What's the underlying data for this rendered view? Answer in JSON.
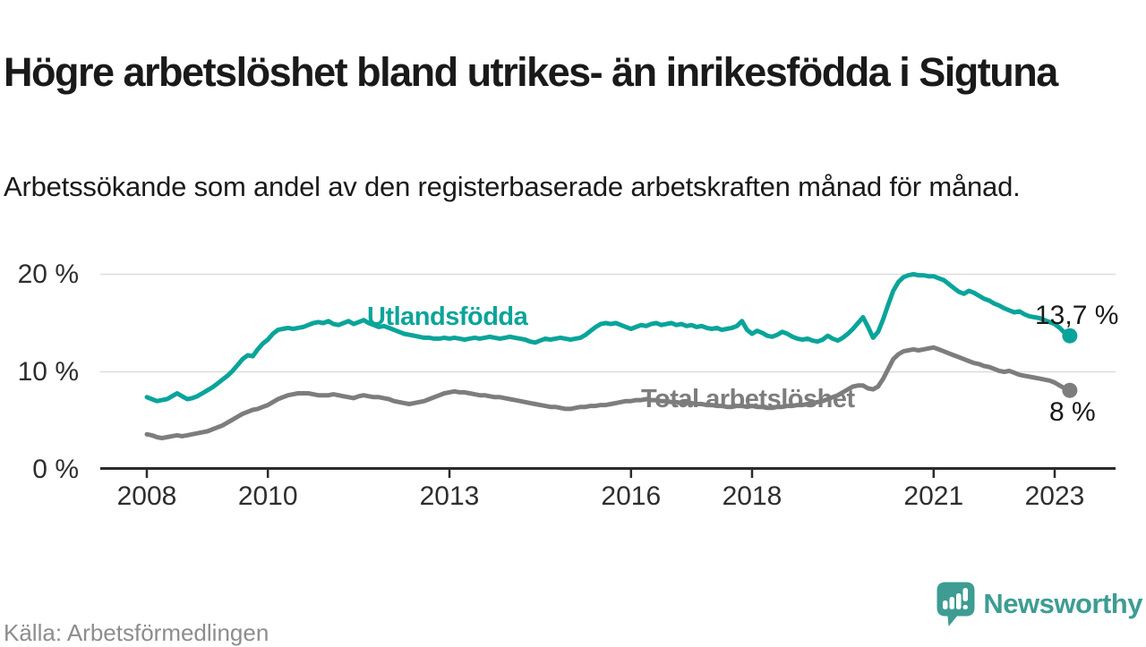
{
  "header": {
    "title": "Högre arbetslöshet bland utrikes- än inrikesfödda i Sigtuna",
    "subtitle": "Arbetssökande som andel av den registerbaserade arbetskraften månad för månad."
  },
  "footer": {
    "source": "Källa: Arbetsförmedlingen",
    "logo_text": "Newsworthy",
    "logo_color": "#3e9c93"
  },
  "colors": {
    "accent_teal": "#0aa49a",
    "series_gray": "#7d7d7d",
    "axis_text": "#2e2e2e",
    "gridline": "#dcdcdc",
    "axis_line": "#2b2b2b",
    "muted_text": "#8d8d8d"
  },
  "chart_data": {
    "type": "line",
    "title": "Högre arbetslöshet bland utrikes- än inrikesfödda i Sigtuna",
    "subtitle": "Arbetssökande som andel av den registerbaserade arbetskraften månad för månad.",
    "xlabel": "",
    "ylabel": "",
    "unit": "%",
    "x_start": "2008-01",
    "x_end": "2023-04",
    "x_step": "1 month",
    "ylim": [
      0,
      21
    ],
    "grid": true,
    "legend_position": "inline-labels",
    "x_ticks": [
      {
        "year": 2008,
        "label": "2008"
      },
      {
        "year": 2010,
        "label": "2010"
      },
      {
        "year": 2013,
        "label": "2013"
      },
      {
        "year": 2016,
        "label": "2016"
      },
      {
        "year": 2018,
        "label": "2018"
      },
      {
        "year": 2021,
        "label": "2021"
      },
      {
        "year": 2023,
        "label": "2023"
      }
    ],
    "y_ticks": [
      {
        "value": 0,
        "label": "0 %"
      },
      {
        "value": 10,
        "label": "10 %"
      },
      {
        "value": 20,
        "label": "20 %"
      }
    ],
    "series": [
      {
        "name": "Utlandsfödda",
        "color": "#0aa49a",
        "end_label": "13,7 %",
        "end_value": 13.7,
        "values": [
          7.4,
          7.2,
          7.0,
          7.1,
          7.2,
          7.5,
          7.8,
          7.5,
          7.2,
          7.3,
          7.5,
          7.8,
          8.1,
          8.4,
          8.8,
          9.2,
          9.6,
          10.1,
          10.7,
          11.3,
          11.7,
          11.6,
          12.3,
          12.9,
          13.3,
          13.9,
          14.3,
          14.4,
          14.5,
          14.4,
          14.5,
          14.6,
          14.8,
          15.0,
          15.1,
          15.0,
          15.2,
          14.9,
          14.8,
          15.0,
          15.2,
          14.9,
          15.1,
          15.3,
          15.0,
          14.8,
          14.6,
          14.7,
          14.5,
          14.3,
          14.1,
          13.9,
          13.8,
          13.7,
          13.6,
          13.5,
          13.5,
          13.4,
          13.4,
          13.5,
          13.4,
          13.5,
          13.4,
          13.3,
          13.4,
          13.5,
          13.4,
          13.5,
          13.6,
          13.5,
          13.4,
          13.5,
          13.6,
          13.5,
          13.4,
          13.3,
          13.1,
          13.0,
          13.2,
          13.4,
          13.3,
          13.4,
          13.5,
          13.4,
          13.3,
          13.4,
          13.5,
          13.8,
          14.2,
          14.6,
          14.9,
          15.0,
          14.9,
          15.0,
          14.8,
          14.6,
          14.4,
          14.6,
          14.8,
          14.7,
          14.9,
          15.0,
          14.8,
          14.9,
          15.0,
          14.8,
          14.9,
          14.7,
          14.8,
          14.6,
          14.7,
          14.5,
          14.4,
          14.5,
          14.3,
          14.4,
          14.5,
          14.7,
          15.2,
          14.3,
          13.9,
          14.2,
          14.0,
          13.7,
          13.6,
          13.8,
          14.1,
          13.9,
          13.6,
          13.4,
          13.3,
          13.4,
          13.2,
          13.1,
          13.3,
          13.7,
          13.4,
          13.2,
          13.5,
          13.9,
          14.4,
          15.0,
          15.6,
          14.6,
          13.5,
          14.1,
          15.4,
          16.9,
          18.3,
          19.2,
          19.7,
          19.9,
          20.0,
          19.9,
          19.9,
          19.8,
          19.8,
          19.6,
          19.4,
          19.0,
          18.6,
          18.2,
          18.0,
          18.3,
          18.1,
          17.8,
          17.5,
          17.3,
          17.0,
          16.8,
          16.5,
          16.3,
          16.1,
          16.2,
          15.9,
          15.7,
          15.6,
          15.5,
          15.3,
          15.1,
          14.9,
          14.5,
          14.0,
          13.7
        ]
      },
      {
        "name": "Total arbetslöshet",
        "color": "#7d7d7d",
        "end_label": "8 %",
        "end_value": 8.1,
        "values": [
          3.6,
          3.5,
          3.3,
          3.2,
          3.3,
          3.4,
          3.5,
          3.4,
          3.5,
          3.6,
          3.7,
          3.8,
          3.9,
          4.1,
          4.3,
          4.5,
          4.8,
          5.1,
          5.4,
          5.7,
          5.9,
          6.1,
          6.2,
          6.4,
          6.6,
          6.9,
          7.2,
          7.4,
          7.6,
          7.7,
          7.8,
          7.8,
          7.8,
          7.7,
          7.6,
          7.6,
          7.6,
          7.7,
          7.6,
          7.5,
          7.4,
          7.3,
          7.5,
          7.6,
          7.5,
          7.4,
          7.4,
          7.3,
          7.2,
          7.0,
          6.9,
          6.8,
          6.7,
          6.8,
          6.9,
          7.0,
          7.2,
          7.4,
          7.6,
          7.8,
          7.9,
          8.0,
          7.9,
          7.9,
          7.8,
          7.7,
          7.6,
          7.6,
          7.5,
          7.4,
          7.4,
          7.3,
          7.2,
          7.1,
          7.0,
          6.9,
          6.8,
          6.7,
          6.6,
          6.5,
          6.4,
          6.4,
          6.3,
          6.2,
          6.2,
          6.3,
          6.4,
          6.4,
          6.5,
          6.5,
          6.6,
          6.6,
          6.7,
          6.8,
          6.9,
          7.0,
          7.0,
          7.1,
          7.1,
          7.2,
          7.1,
          7.1,
          7.0,
          7.0,
          6.9,
          6.9,
          6.8,
          6.8,
          6.8,
          6.7,
          6.7,
          6.6,
          6.6,
          6.5,
          6.5,
          6.4,
          6.4,
          6.5,
          6.5,
          6.4,
          6.5,
          6.4,
          6.4,
          6.3,
          6.3,
          6.4,
          6.4,
          6.5,
          6.5,
          6.6,
          6.6,
          6.7,
          6.8,
          6.9,
          7.0,
          7.2,
          7.4,
          7.6,
          7.9,
          8.2,
          8.5,
          8.6,
          8.6,
          8.3,
          8.2,
          8.5,
          9.3,
          10.3,
          11.3,
          11.8,
          12.1,
          12.2,
          12.3,
          12.2,
          12.3,
          12.4,
          12.5,
          12.3,
          12.1,
          11.9,
          11.7,
          11.5,
          11.3,
          11.1,
          10.9,
          10.8,
          10.6,
          10.5,
          10.3,
          10.1,
          10.0,
          10.1,
          9.9,
          9.7,
          9.6,
          9.5,
          9.4,
          9.3,
          9.2,
          9.1,
          8.9,
          8.6,
          8.3,
          8.1
        ]
      }
    ]
  }
}
